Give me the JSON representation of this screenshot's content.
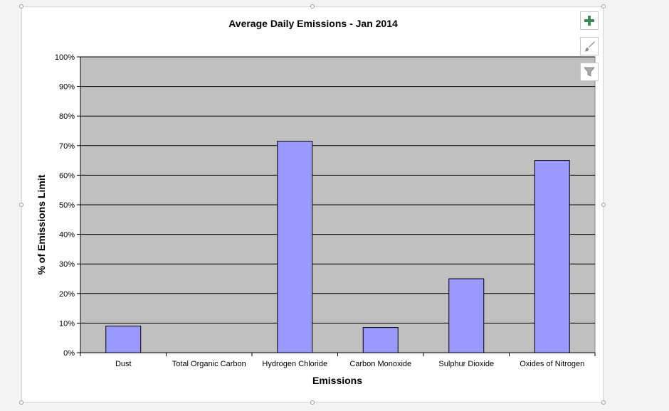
{
  "chart_data": {
    "type": "bar",
    "title": "Average Daily Emissions - Jan 2014",
    "xlabel": "Emissions",
    "ylabel": "% of Emissions Limit",
    "categories": [
      "Dust",
      "Total Organic Carbon",
      "Hydrogen Chloride",
      "Carbon Monoxide",
      "Sulphur Dioxide",
      "Oxides of Nitrogen"
    ],
    "values": [
      9,
      0,
      71.5,
      8.5,
      25,
      65
    ],
    "ylim": [
      0,
      100
    ],
    "yticks": [
      0,
      10,
      20,
      30,
      40,
      50,
      60,
      70,
      80,
      90,
      100
    ],
    "ytick_labels": [
      "0%",
      "10%",
      "20%",
      "30%",
      "40%",
      "50%",
      "60%",
      "70%",
      "80%",
      "90%",
      "100%"
    ],
    "grid": true,
    "legend": "none",
    "colors": {
      "bar": "#9999ff",
      "bar_border": "#000000",
      "plot_background": "#c0c0c0"
    }
  },
  "toolbar": {
    "buttons": [
      {
        "icon": "plus-icon"
      },
      {
        "icon": "brush-icon"
      },
      {
        "icon": "filter-icon"
      }
    ]
  }
}
